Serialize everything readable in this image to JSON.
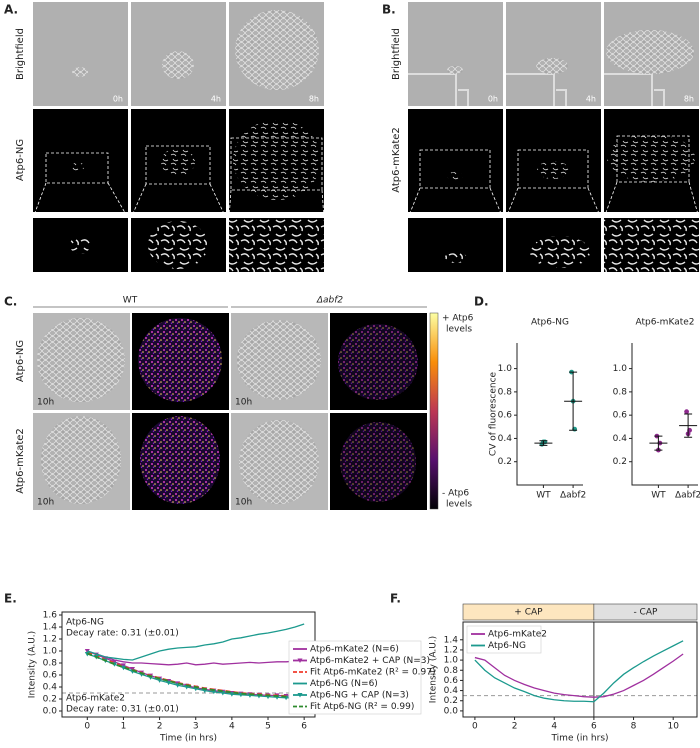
{
  "panels": {
    "A": {
      "label": "A.",
      "rows": [
        "Brightfield",
        "Atp6-NG"
      ],
      "times": [
        "0h",
        "4h",
        "8h"
      ]
    },
    "B": {
      "label": "B.",
      "rows": [
        "Brightfield",
        "Atp6-mKate2"
      ],
      "times": [
        "0h",
        "4h",
        "8h"
      ]
    },
    "C": {
      "label": "C.",
      "columns": [
        "WT",
        "Δabf2"
      ],
      "rows": [
        "Atp6-NG",
        "Atp6-mKate2"
      ],
      "time": "10h",
      "colorbar_top": [
        "+ Atp6",
        "levels"
      ],
      "colorbar_bottom": [
        "- Atp6",
        "levels"
      ]
    },
    "D": {
      "label": "D."
    },
    "E": {
      "label": "E."
    },
    "F": {
      "label": "F."
    }
  },
  "chart_data": [
    {
      "type": "strip",
      "title": "Atp6-NG",
      "ylabel": "CV of fluorescence",
      "categories": [
        "WT",
        "Δabf2"
      ],
      "color": "#1f9a8a",
      "points": [
        [
          0.35,
          0.37,
          0.37
        ],
        [
          0.97,
          0.72,
          0.48
        ]
      ],
      "means": [
        0.36,
        0.72
      ],
      "errors": [
        0.02,
        0.25
      ],
      "ylim": [
        0,
        1.22
      ],
      "yticks": [
        0.2,
        0.4,
        0.6,
        0.8,
        {
          "value": 1,
          "label": "1.0"
        }
      ]
    },
    {
      "type": "strip",
      "title": "Atp6-mKate2",
      "categories": [
        "WT",
        "Δabf2"
      ],
      "color": "#8e2a8e",
      "points": [
        [
          0.42,
          0.3,
          0.36
        ],
        [
          0.63,
          0.44,
          0.47
        ]
      ],
      "means": [
        0.36,
        0.51
      ],
      "errors": [
        0.06,
        0.1
      ],
      "ylim": [
        0,
        1.22
      ],
      "yticks": [
        0.2,
        0.4,
        0.6,
        0.8,
        {
          "value": 1,
          "label": "1.0"
        }
      ]
    },
    {
      "type": "line",
      "xlabel": "Time (in hrs)",
      "ylabel": "Intensity (A.U.)",
      "legend": "outside right",
      "x": [
        0,
        0.25,
        0.5,
        0.75,
        1,
        1.25,
        1.5,
        1.75,
        2,
        2.25,
        2.5,
        2.75,
        3,
        3.25,
        3.5,
        3.75,
        4,
        4.25,
        4.5,
        4.75,
        5,
        5.25,
        5.5,
        5.75,
        6
      ],
      "series": [
        {
          "name": "Atp6-mKate2 (N=6)",
          "color": "#a0309f",
          "values": [
            1.0,
            0.95,
            0.9,
            0.85,
            0.82,
            0.8,
            0.8,
            0.79,
            0.78,
            0.77,
            0.78,
            0.8,
            0.77,
            0.78,
            0.8,
            0.78,
            0.79,
            0.8,
            0.81,
            0.8,
            0.81,
            0.82,
            0.82,
            0.83,
            0.83
          ]
        },
        {
          "name": "Atp6-mKate2 + CAP (N=3)",
          "color": "#a0309f",
          "marker": "triangle-down",
          "values": [
            1.0,
            0.94,
            0.88,
            0.82,
            0.76,
            0.7,
            0.64,
            0.59,
            0.54,
            0.5,
            0.46,
            0.42,
            0.39,
            0.36,
            0.34,
            0.32,
            0.3,
            0.29,
            0.28,
            0.27,
            0.26,
            0.26,
            0.25,
            0.25,
            0.25
          ]
        },
        {
          "name": "Fit Atp6-mKate2 (R² = 0.97)",
          "color": "#f03c2c",
          "linestyle": "dashed",
          "values": [
            0.98,
            0.92,
            0.86,
            0.8,
            0.74,
            0.69,
            0.64,
            0.59,
            0.55,
            0.51,
            0.47,
            0.44,
            0.41,
            0.38,
            0.36,
            0.34,
            0.32,
            0.3,
            0.29,
            0.28,
            0.27,
            0.26,
            0.25,
            0.24,
            0.23
          ]
        },
        {
          "name": "Atp6-NG (N=6)",
          "color": "#1c9a8e",
          "values": [
            1.0,
            0.95,
            0.9,
            0.88,
            0.86,
            0.85,
            0.9,
            0.95,
            1.0,
            1.03,
            1.05,
            1.06,
            1.07,
            1.1,
            1.12,
            1.15,
            1.2,
            1.22,
            1.25,
            1.28,
            1.3,
            1.33,
            1.36,
            1.4,
            1.45
          ]
        },
        {
          "name": "Atp6-NG + CAP (N=3)",
          "color": "#1c9a8e",
          "marker": "triangle-down",
          "values": [
            0.95,
            0.9,
            0.84,
            0.78,
            0.72,
            0.66,
            0.61,
            0.56,
            0.51,
            0.47,
            0.43,
            0.4,
            0.37,
            0.34,
            0.32,
            0.3,
            0.28,
            0.27,
            0.26,
            0.25,
            0.24,
            0.23,
            0.22,
            0.22,
            0.21
          ]
        },
        {
          "name": "Fit Atp6-NG (R² = 0.99)",
          "color": "#2e8b2e",
          "linestyle": "dashed",
          "values": [
            0.96,
            0.9,
            0.84,
            0.78,
            0.73,
            0.68,
            0.63,
            0.58,
            0.54,
            0.5,
            0.46,
            0.43,
            0.4,
            0.37,
            0.35,
            0.33,
            0.31,
            0.29,
            0.28,
            0.27,
            0.26,
            0.25,
            0.24,
            0.23,
            0.22
          ]
        }
      ],
      "hline": 0.3,
      "annotations": [
        [
          "Atp6-NG",
          "Decay rate: 0.31 (±0.01)"
        ],
        [
          "Atp6-mKate2",
          "Decay rate: 0.31 (±0.01)"
        ]
      ],
      "xlim": [
        -0.7,
        6.3
      ],
      "xticks": [
        0,
        1,
        2,
        3,
        4,
        5,
        6
      ],
      "ylim": [
        -0.1,
        1.65
      ],
      "yticks": [
        {
          "value": 0,
          "label": "0.0"
        },
        0.2,
        0.4,
        0.6,
        0.8,
        {
          "value": 1,
          "label": "1.0"
        },
        1.2,
        1.4,
        1.6
      ]
    },
    {
      "type": "line",
      "xlabel": "Time (in hrs)",
      "ylabel": "Intensity (A.U.)",
      "legend": "upper left",
      "phases": [
        {
          "label": "+ CAP",
          "color": "#fde6bf"
        },
        {
          "label": "- CAP",
          "color": "#e0e0e0"
        }
      ],
      "vline": 6,
      "hline": 0.3,
      "x": [
        0,
        0.5,
        1,
        1.5,
        2,
        2.5,
        3,
        3.5,
        4,
        4.5,
        5,
        5.5,
        6,
        6.5,
        7,
        7.5,
        8,
        8.5,
        9,
        9.5,
        10,
        10.5
      ],
      "series": [
        {
          "name": "Atp6-mKate2",
          "color": "#a0309f",
          "values": [
            1.05,
            1.0,
            0.85,
            0.7,
            0.6,
            0.52,
            0.45,
            0.4,
            0.35,
            0.32,
            0.3,
            0.28,
            0.27,
            0.28,
            0.33,
            0.4,
            0.5,
            0.6,
            0.72,
            0.85,
            0.98,
            1.12
          ]
        },
        {
          "name": "Atp6-NG",
          "color": "#1c9a8e",
          "values": [
            1.0,
            0.8,
            0.65,
            0.55,
            0.45,
            0.38,
            0.3,
            0.25,
            0.22,
            0.2,
            0.19,
            0.19,
            0.18,
            0.35,
            0.55,
            0.72,
            0.85,
            0.97,
            1.08,
            1.18,
            1.28,
            1.38
          ]
        }
      ],
      "xlim": [
        -0.6,
        11.2
      ],
      "xticks": [
        0,
        2,
        4,
        6,
        8,
        10
      ],
      "ylim": [
        -0.12,
        1.75
      ],
      "yticks": [
        {
          "value": 0,
          "label": "0.0"
        },
        0.2,
        0.4,
        0.6,
        0.8,
        {
          "value": 1,
          "label": "1.0"
        },
        1.2,
        1.4
      ]
    }
  ]
}
